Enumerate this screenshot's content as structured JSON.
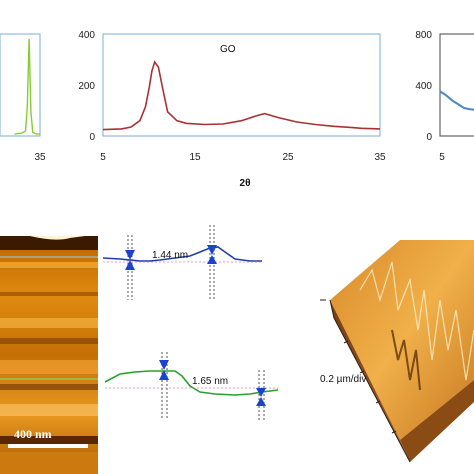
{
  "chart_data": [
    {
      "type": "line",
      "title": "",
      "xlabel": "",
      "ylabel": "",
      "x_ticks": [
        "35"
      ],
      "series": [
        {
          "color": "#88cc33",
          "x": [
            28,
            30,
            31,
            31.5,
            32,
            32.5,
            33,
            34,
            35
          ],
          "y": [
            0.02,
            0.03,
            0.05,
            0.3,
            1.0,
            0.25,
            0.04,
            0.02,
            0.02
          ]
        }
      ]
    },
    {
      "type": "line",
      "title": "",
      "annotation": "GO",
      "xlabel": "2θ",
      "ylabel": "",
      "xlim": [
        5,
        35
      ],
      "ylim": [
        0,
        400
      ],
      "x_ticks": [
        "5",
        "15",
        "25",
        "35"
      ],
      "y_ticks": [
        "0",
        "200",
        "400"
      ],
      "series": [
        {
          "color": "#a83232",
          "x": [
            5,
            7,
            8,
            9,
            9.6,
            10,
            10.3,
            10.6,
            11,
            11.5,
            12,
            13,
            14,
            16,
            18,
            20,
            21.5,
            22.5,
            24,
            26,
            28,
            30,
            32,
            33,
            35
          ],
          "y": [
            25,
            28,
            35,
            60,
            115,
            190,
            255,
            290,
            270,
            180,
            95,
            60,
            50,
            45,
            47,
            60,
            78,
            88,
            72,
            55,
            45,
            38,
            33,
            30,
            28
          ]
        }
      ]
    },
    {
      "type": "line",
      "title": "",
      "xlabel": "",
      "ylabel": "",
      "x_ticks": [
        "5"
      ],
      "y_ticks": [
        "0",
        "400",
        "800"
      ],
      "ylim": [
        0,
        800
      ],
      "series": [
        {
          "color": "#4a86c8",
          "x": [
            5,
            5.5,
            6,
            6.5,
            7,
            7.5,
            8
          ],
          "y": [
            350,
            320,
            280,
            250,
            220,
            210,
            205
          ]
        }
      ]
    }
  ],
  "afm": {
    "scale_bar": "400 nm",
    "profile_top_value": "1.44 nm",
    "profile_bottom_value": "1.65 nm",
    "surface_3d_label": "0.2 µm/div"
  },
  "colors": {
    "green": "#88cc33",
    "red": "#a83232",
    "blue_series": "#4a86c8",
    "profile_blue": "#1f3fa6",
    "profile_green": "#2aa02a"
  }
}
